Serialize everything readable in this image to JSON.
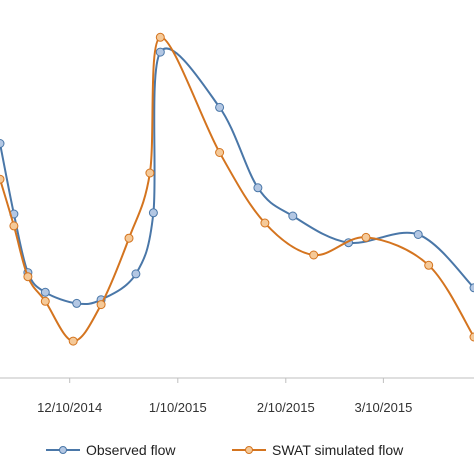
{
  "chart_data": {
    "type": "line",
    "title": "",
    "xlabel": "",
    "ylabel": "",
    "x_tick_labels": [
      "12/10/2014",
      "1/10/2015",
      "2/10/2015",
      "3/10/2015"
    ],
    "x_tick_dates": [
      "2014-12-10",
      "2015-01-10",
      "2015-02-10",
      "2015-03-10"
    ],
    "xlim": [
      "2014-11-20",
      "2015-04-05"
    ],
    "ylim": [
      0,
      1
    ],
    "grid": false,
    "legend_position": "bottom",
    "series": [
      {
        "name": "Observed flow",
        "color": "#4a77a8",
        "marker_color": "#b3c7e3",
        "x": [
          "2014-11-20",
          "2014-11-24",
          "2014-11-28",
          "2014-12-03",
          "2014-12-12",
          "2014-12-19",
          "2014-12-29",
          "2015-01-03",
          "2015-01-05",
          "2015-01-22",
          "2015-02-02",
          "2015-02-12",
          "2015-02-28",
          "2015-03-20",
          "2015-04-05"
        ],
        "y": [
          0.572,
          0.4,
          0.257,
          0.209,
          0.182,
          0.191,
          0.254,
          0.403,
          0.795,
          0.66,
          0.464,
          0.395,
          0.33,
          0.35,
          0.22
        ]
      },
      {
        "name": "SWAT simulated flow",
        "color": "#d4741f",
        "marker_color": "#f5c998",
        "x": [
          "2014-11-20",
          "2014-11-24",
          "2014-11-28",
          "2014-12-03",
          "2014-12-11",
          "2014-12-19",
          "2014-12-27",
          "2015-01-02",
          "2015-01-05",
          "2015-01-22",
          "2015-02-04",
          "2015-02-18",
          "2015-03-05",
          "2015-03-23",
          "2015-04-05"
        ],
        "y": [
          0.485,
          0.371,
          0.247,
          0.187,
          0.09,
          0.179,
          0.341,
          0.5,
          0.831,
          0.55,
          0.378,
          0.3,
          0.343,
          0.275,
          0.1
        ]
      }
    ]
  }
}
